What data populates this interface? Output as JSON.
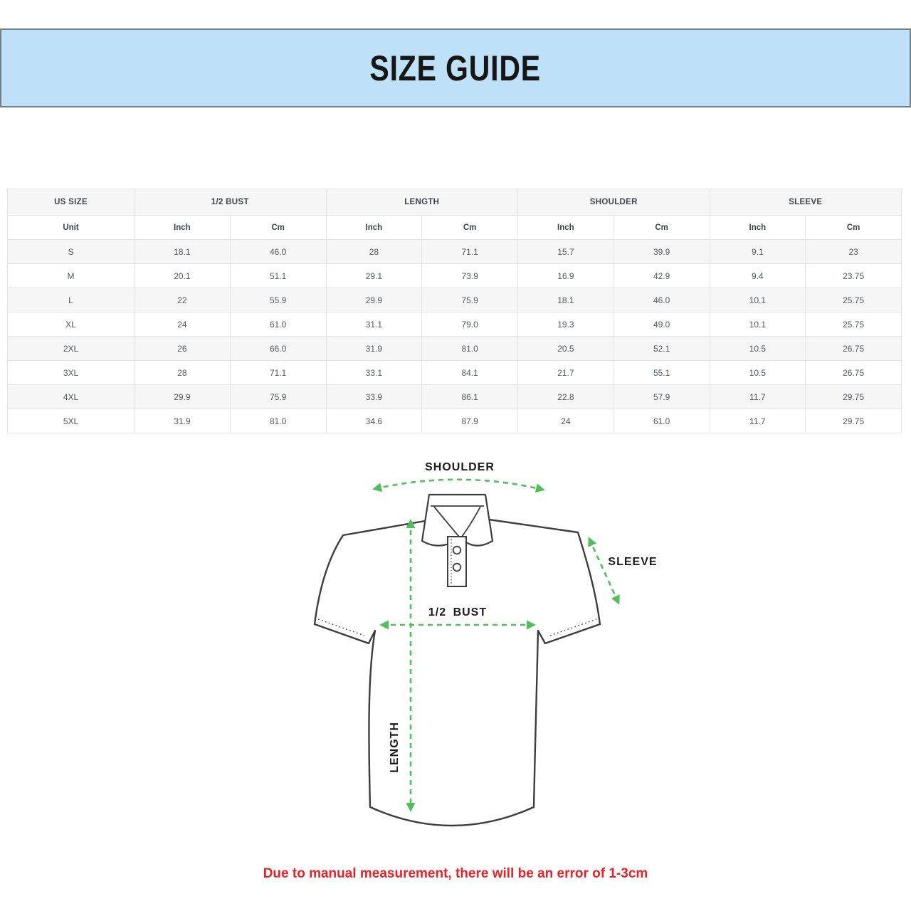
{
  "banner": {
    "title": "SIZE GUIDE",
    "bg_color": "#bee1f8",
    "border_color": "#73808a"
  },
  "table": {
    "groups": [
      {
        "label": "US SIZE",
        "span": 1
      },
      {
        "label": "1/2 BUST",
        "span": 2
      },
      {
        "label": "LENGTH",
        "span": 2
      },
      {
        "label": "SHOULDER",
        "span": 2
      },
      {
        "label": "SLEEVE",
        "span": 2
      }
    ],
    "unit_row": [
      "Unit",
      "Inch",
      "Cm",
      "Inch",
      "Cm",
      "Inch",
      "Cm",
      "Inch",
      "Cm"
    ],
    "rows": [
      {
        "size": "S",
        "values": [
          "18.1",
          "46.0",
          "28",
          "71.1",
          "15.7",
          "39.9",
          "9.1",
          "23"
        ]
      },
      {
        "size": "M",
        "values": [
          "20.1",
          "51.1",
          "29.1",
          "73.9",
          "16.9",
          "42.9",
          "9.4",
          "23.75"
        ]
      },
      {
        "size": "L",
        "values": [
          "22",
          "55.9",
          "29.9",
          "75.9",
          "18.1",
          "46.0",
          "10.1",
          "25.75"
        ]
      },
      {
        "size": "XL",
        "values": [
          "24",
          "61.0",
          "31.1",
          "79.0",
          "19.3",
          "49.0",
          "10.1",
          "25.75"
        ]
      },
      {
        "size": "2XL",
        "values": [
          "26",
          "66.0",
          "31.9",
          "81.0",
          "20.5",
          "52.1",
          "10.5",
          "26.75"
        ]
      },
      {
        "size": "3XL",
        "values": [
          "28",
          "71.1",
          "33.1",
          "84.1",
          "21.7",
          "55.1",
          "10.5",
          "26.75"
        ]
      },
      {
        "size": "4XL",
        "values": [
          "29.9",
          "75.9",
          "33.9",
          "86.1",
          "22.8",
          "57.9",
          "11.7",
          "29.75"
        ]
      },
      {
        "size": "5XL",
        "values": [
          "31.9",
          "81.0",
          "34.6",
          "87.9",
          "24",
          "61.0",
          "11.7",
          "29.75"
        ]
      }
    ]
  },
  "diagram": {
    "shoulder_label": "SHOULDER",
    "sleeve_label": "SLEEVE",
    "bust_label": "1/2 BUST",
    "length_label": "LENGTH",
    "arrow_color": "#52bd5b",
    "outline_color": "#3d3d3d"
  },
  "note": {
    "text": "Due to manual measurement, there will be an error of 1-3cm",
    "color": "#e4222a"
  }
}
